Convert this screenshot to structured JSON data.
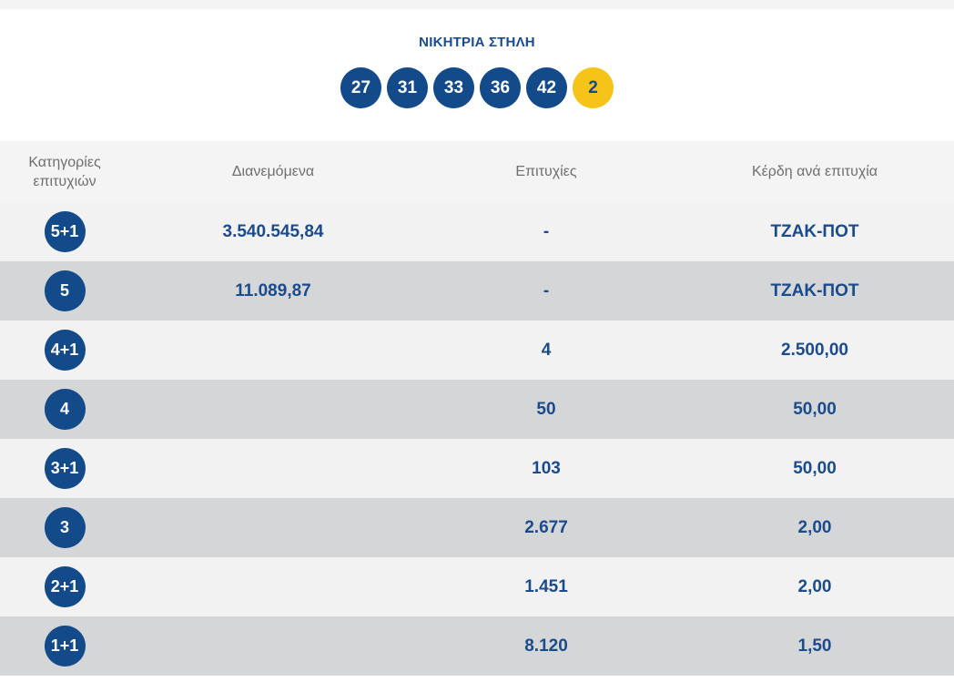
{
  "winning_column": {
    "title": "ΝΙΚΗΤΡΙΑ ΣΤΗΛΗ",
    "numbers": [
      "27",
      "31",
      "33",
      "36",
      "42"
    ],
    "bonus": "2",
    "colors": {
      "ball": "#134a8a",
      "bonus_ball": "#f6c418"
    }
  },
  "table": {
    "headers": {
      "category_line1": "Κατηγορίες",
      "category_line2": "επιτυχιών",
      "distributed": "Διανεμόμενα",
      "winners": "Επιτυχίες",
      "prize_per_winner": "Κέρδη ανά επιτυχία"
    },
    "rows": [
      {
        "category": "5+1",
        "distributed": "3.540.545,84",
        "winners": "-",
        "prize": "ΤΖΑΚ-ΠΟΤ"
      },
      {
        "category": "5",
        "distributed": "11.089,87",
        "winners": "-",
        "prize": "ΤΖΑΚ-ΠΟΤ"
      },
      {
        "category": "4+1",
        "distributed": "",
        "winners": "4",
        "prize": "2.500,00"
      },
      {
        "category": "4",
        "distributed": "",
        "winners": "50",
        "prize": "50,00"
      },
      {
        "category": "3+1",
        "distributed": "",
        "winners": "103",
        "prize": "50,00"
      },
      {
        "category": "3",
        "distributed": "",
        "winners": "2.677",
        "prize": "2,00"
      },
      {
        "category": "2+1",
        "distributed": "",
        "winners": "1.451",
        "prize": "2,00"
      },
      {
        "category": "1+1",
        "distributed": "",
        "winners": "8.120",
        "prize": "1,50"
      }
    ]
  }
}
